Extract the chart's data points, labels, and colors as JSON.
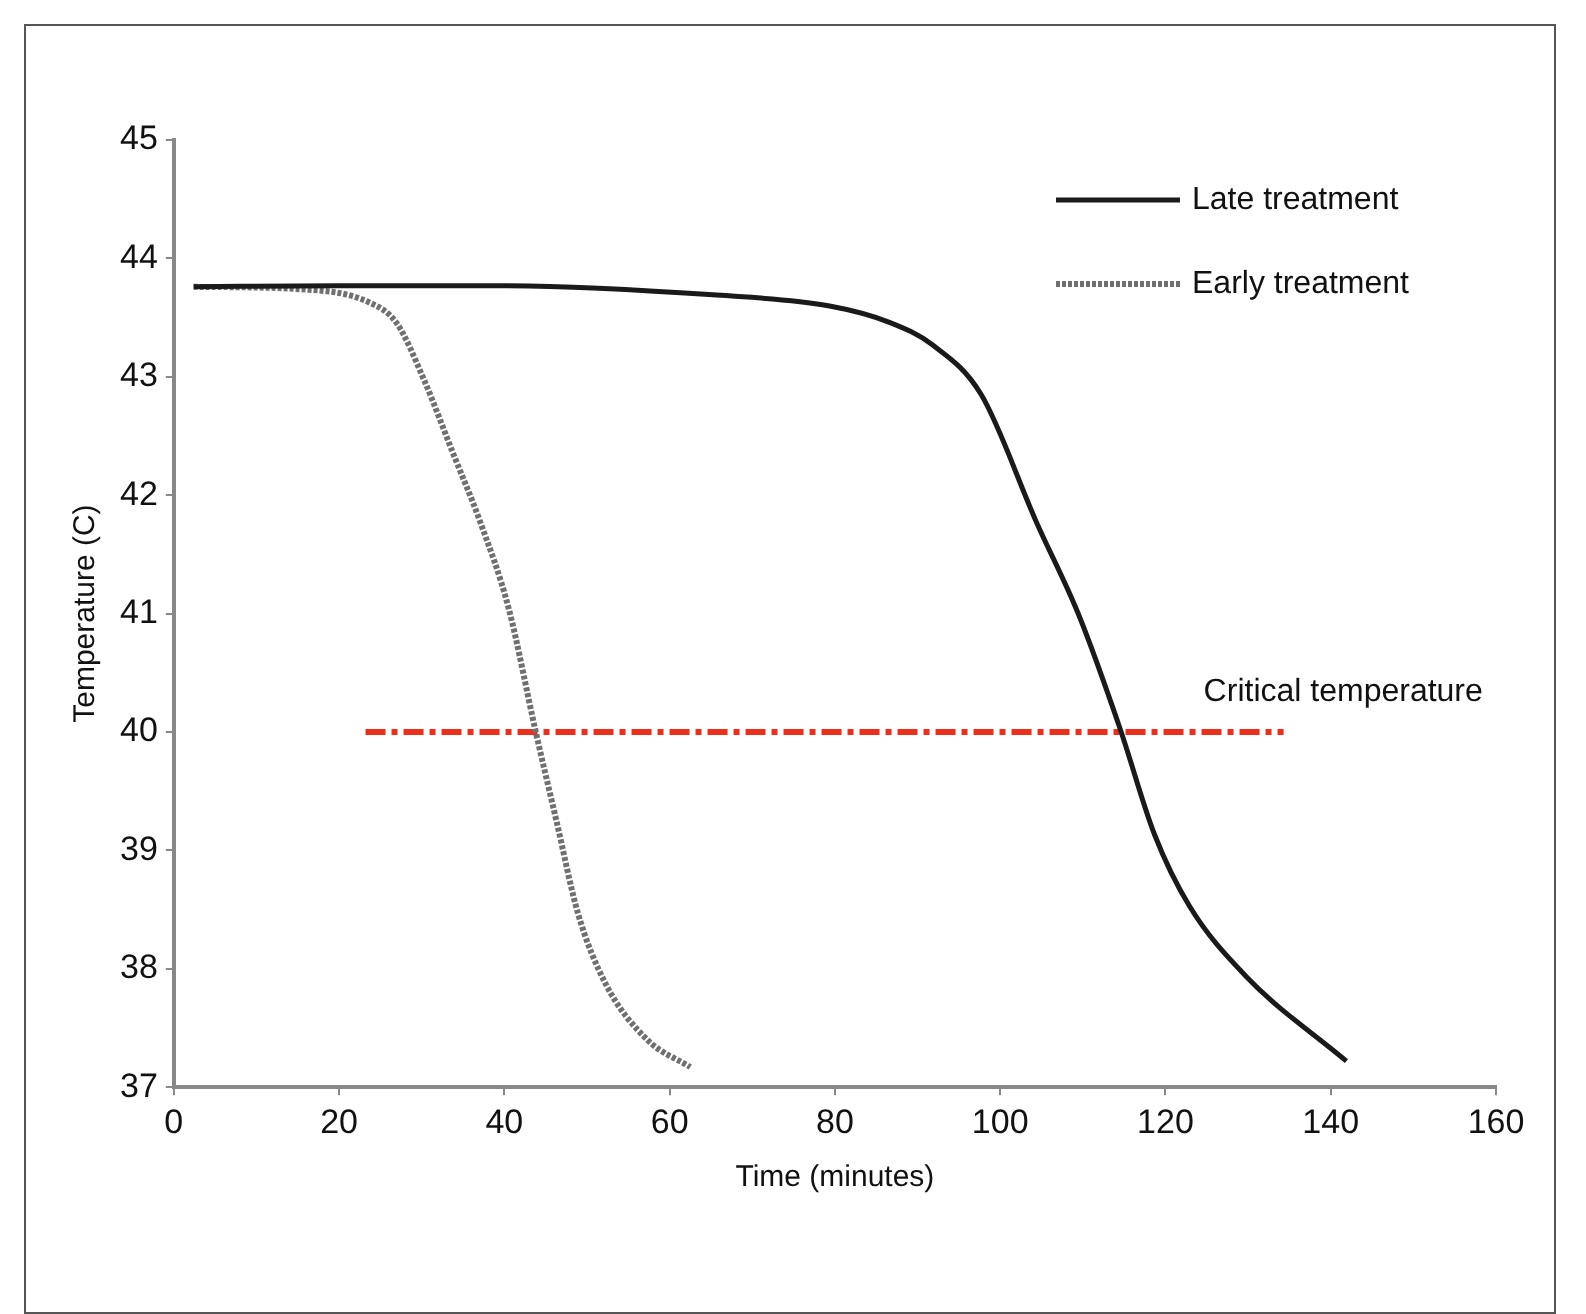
{
  "chart_data": {
    "type": "line",
    "xlabel": "Time (minutes)",
    "ylabel": "Temperature (C)",
    "xlim": [
      0,
      160
    ],
    "xticks": [
      0,
      20,
      40,
      60,
      80,
      100,
      120,
      140,
      160
    ],
    "ylim": [
      37,
      45
    ],
    "yticks": [
      37,
      38,
      39,
      40,
      41,
      42,
      43,
      44,
      45
    ],
    "grid": false,
    "legend": "top right",
    "marker": "none",
    "series": [
      {
        "name": "Late treatment",
        "color": "#1a1a1a",
        "line_style": "solid",
        "x": [
          2.4,
          20,
          40,
          65.7,
          79.2,
          86.6,
          91.8,
          97.7,
          104.4,
          109.5,
          114.5,
          118.7,
          122.9,
          129.7,
          141.9
        ],
        "values": [
          43.76,
          43.77,
          43.77,
          43.69,
          43.6,
          43.46,
          43.27,
          42.85,
          41.77,
          40.99,
          40.03,
          39.13,
          38.53,
          37.94,
          37.22
        ]
      },
      {
        "name": "Early treatment",
        "color": "#707070",
        "line_style": "dotted",
        "x": [
          2.4,
          15.2,
          23.6,
          27,
          30.3,
          33.7,
          37.1,
          40.5,
          43.8,
          46.3,
          48.9,
          52.2,
          57.3,
          62.5
        ],
        "values": [
          43.76,
          43.74,
          43.63,
          43.45,
          42.97,
          42.37,
          41.77,
          41.05,
          40.0,
          39.25,
          38.47,
          37.88,
          37.4,
          37.17
        ]
      },
      {
        "color": "#e8301c",
        "line_style": "dashed",
        "x": [
          23.2,
          134.3
        ],
        "values": [
          40,
          40
        ]
      }
    ],
    "annotations": [
      {
        "text": "Critical temperature",
        "x": 134.3,
        "y": 40
      }
    ]
  }
}
